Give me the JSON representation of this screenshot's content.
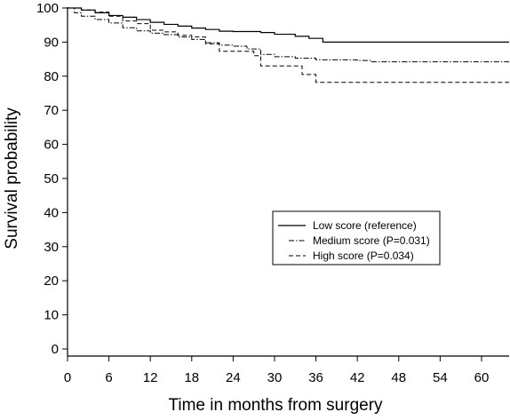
{
  "chart_data": {
    "type": "line",
    "title": "",
    "xlabel": "Time in months from surgery",
    "ylabel": "Survival probability",
    "xlim": [
      0,
      64
    ],
    "ylim": [
      0,
      100
    ],
    "x_ticks": [
      "0",
      "6",
      "12",
      "18",
      "24",
      "30",
      "36",
      "42",
      "48",
      "54",
      "60"
    ],
    "y_ticks": [
      "0",
      "10",
      "20",
      "30",
      "40",
      "50",
      "60",
      "70",
      "80",
      "90",
      "100"
    ],
    "grid": false,
    "legend_position": "center-right",
    "series": [
      {
        "name": "Low score (reference)",
        "style": "solid",
        "points": [
          [
            0,
            100
          ],
          [
            2,
            99.4
          ],
          [
            4,
            98.6
          ],
          [
            6,
            97.8
          ],
          [
            8,
            97.3
          ],
          [
            10,
            96.6
          ],
          [
            12,
            95.8
          ],
          [
            14,
            95.2
          ],
          [
            16,
            94.7
          ],
          [
            18,
            94.1
          ],
          [
            20,
            93.7
          ],
          [
            22,
            93.2
          ],
          [
            24,
            93.1
          ],
          [
            28,
            92.8
          ],
          [
            30,
            92.3
          ],
          [
            33,
            91.7
          ],
          [
            35,
            91.1
          ],
          [
            37,
            90
          ],
          [
            64,
            90
          ]
        ]
      },
      {
        "name": "Medium score (P=0.031)",
        "style": "dash-dot",
        "points": [
          [
            0,
            100
          ],
          [
            1,
            98.6
          ],
          [
            2,
            97.6
          ],
          [
            4,
            96.6
          ],
          [
            6,
            95.6
          ],
          [
            8,
            94.2
          ],
          [
            10,
            93.3
          ],
          [
            12,
            92.6
          ],
          [
            14,
            92.2
          ],
          [
            16,
            91.5
          ],
          [
            18,
            90.8
          ],
          [
            20,
            89.8
          ],
          [
            22,
            89.1
          ],
          [
            24,
            88.8
          ],
          [
            26,
            88
          ],
          [
            28,
            86.4
          ],
          [
            30,
            85.7
          ],
          [
            33,
            85.3
          ],
          [
            36,
            84.8
          ],
          [
            42,
            84.6
          ],
          [
            44,
            84.2
          ],
          [
            64,
            84.2
          ]
        ]
      },
      {
        "name": "High score (P=0.034)",
        "style": "dashed",
        "points": [
          [
            0,
            100
          ],
          [
            2,
            99.4
          ],
          [
            4,
            98.8
          ],
          [
            6,
            97.6
          ],
          [
            8,
            96.2
          ],
          [
            10,
            95.4
          ],
          [
            12,
            93.5
          ],
          [
            14,
            93
          ],
          [
            16,
            92
          ],
          [
            18,
            91.5
          ],
          [
            20,
            89.5
          ],
          [
            22,
            87.3
          ],
          [
            26,
            87.3
          ],
          [
            27,
            86
          ],
          [
            28,
            83
          ],
          [
            33,
            83
          ],
          [
            34,
            80.5
          ],
          [
            36,
            78.2
          ],
          [
            64,
            78.2
          ]
        ]
      }
    ]
  }
}
